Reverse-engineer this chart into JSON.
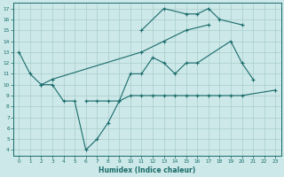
{
  "xlabel": "Humidex (Indice chaleur)",
  "background_color": "#cce8e8",
  "grid_color": "#aacccc",
  "line_color": "#1a6b6b",
  "xlim": [
    -0.5,
    23.5
  ],
  "ylim": [
    3.5,
    17.5
  ],
  "yticks": [
    4,
    5,
    6,
    7,
    8,
    9,
    10,
    11,
    12,
    13,
    14,
    15,
    16,
    17
  ],
  "xticks": [
    0,
    1,
    2,
    3,
    4,
    5,
    6,
    7,
    8,
    9,
    10,
    11,
    12,
    13,
    14,
    15,
    16,
    17,
    18,
    19,
    20,
    21,
    22,
    23
  ],
  "line1_x": [
    0,
    1,
    2,
    3,
    4,
    5,
    6,
    7,
    8,
    9,
    10,
    11,
    12,
    13,
    14,
    15,
    16,
    19,
    20,
    21
  ],
  "line1_y": [
    13,
    11,
    10,
    10,
    8.5,
    8.5,
    4,
    5,
    6.5,
    8.5,
    11,
    11,
    12.5,
    12,
    11,
    12,
    12,
    14,
    12,
    10.5
  ],
  "line2_x": [
    6,
    7,
    8,
    9,
    10,
    11,
    12,
    13,
    14,
    15,
    16,
    17,
    18,
    19,
    20,
    23
  ],
  "line2_y": [
    8.5,
    8.5,
    8.5,
    8.5,
    9,
    9,
    9,
    9,
    9,
    9,
    9,
    9,
    9,
    9,
    9,
    9.5
  ],
  "line3_x": [
    11,
    13,
    15,
    16,
    17,
    18,
    20
  ],
  "line3_y": [
    15,
    17,
    16.5,
    16.5,
    17,
    16,
    15.5
  ],
  "line4_x": [
    2,
    3,
    11,
    13,
    15,
    17
  ],
  "line4_y": [
    10,
    10.5,
    13,
    14,
    15,
    15.5
  ]
}
